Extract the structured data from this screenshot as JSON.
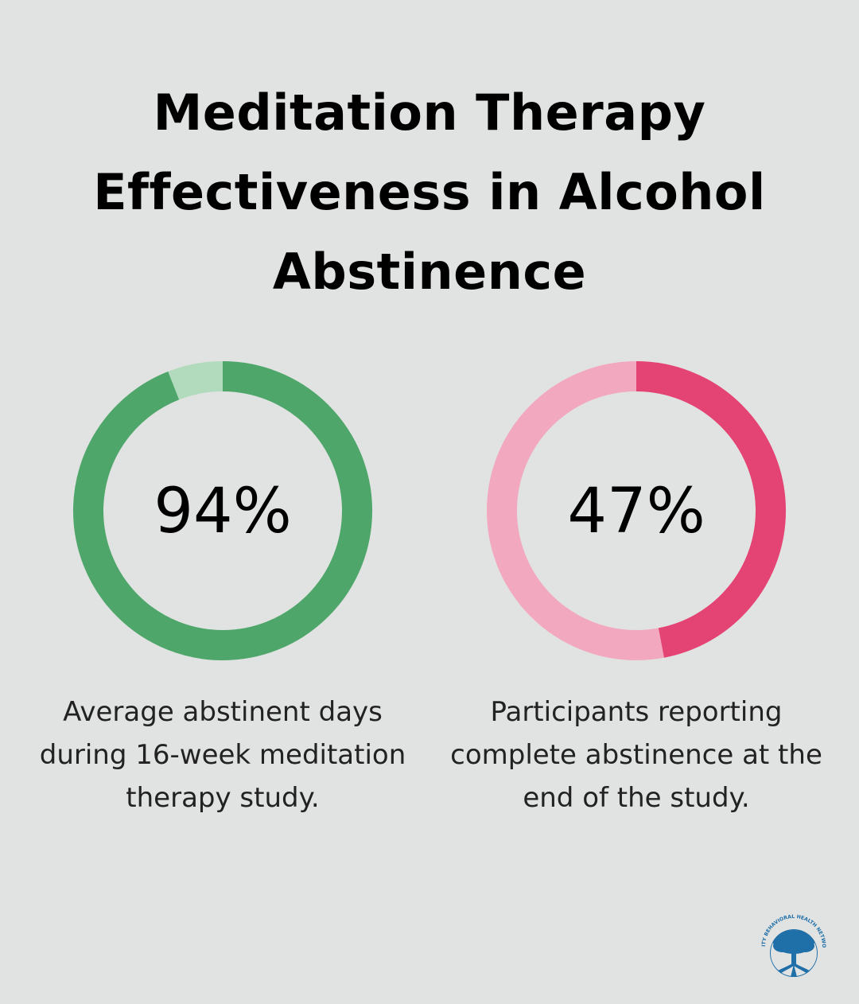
{
  "title": "Meditation Therapy Effectiveness in Alcohol Abstinence",
  "colors": {
    "background": "#e1e3e2",
    "green_fill": "#4fa66b",
    "green_track": "#b2dbbd",
    "pink_fill": "#e44474",
    "pink_track": "#f2a9bf"
  },
  "chart_data": [
    {
      "type": "pie",
      "style": "donut",
      "value": 94,
      "max": 100,
      "label": "94%",
      "caption": "Average abstinent days during 16-week meditation therapy study.",
      "fill_color": "#4fa66b",
      "track_color": "#b2dbbd"
    },
    {
      "type": "pie",
      "style": "donut",
      "value": 47,
      "max": 100,
      "label": "47%",
      "caption": "Participants reporting complete abstinence at the end of the study.",
      "fill_color": "#e44474",
      "track_color": "#f2a9bf"
    }
  ],
  "logo": {
    "icon": "tree-logo-icon",
    "text": "AMITY BEHAVIORAL HEALTH NETWORK",
    "color": "#1f6fa8"
  }
}
